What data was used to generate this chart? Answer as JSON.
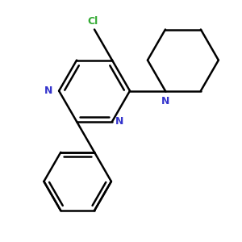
{
  "background_color": "#ffffff",
  "bond_color": "#000000",
  "n_color": "#3333cc",
  "cl_color": "#33aa33",
  "line_width": 1.8,
  "figsize": [
    3.0,
    3.0
  ],
  "dpi": 100,
  "xlim": [
    -2.5,
    4.0
  ],
  "ylim": [
    -4.2,
    2.5
  ]
}
